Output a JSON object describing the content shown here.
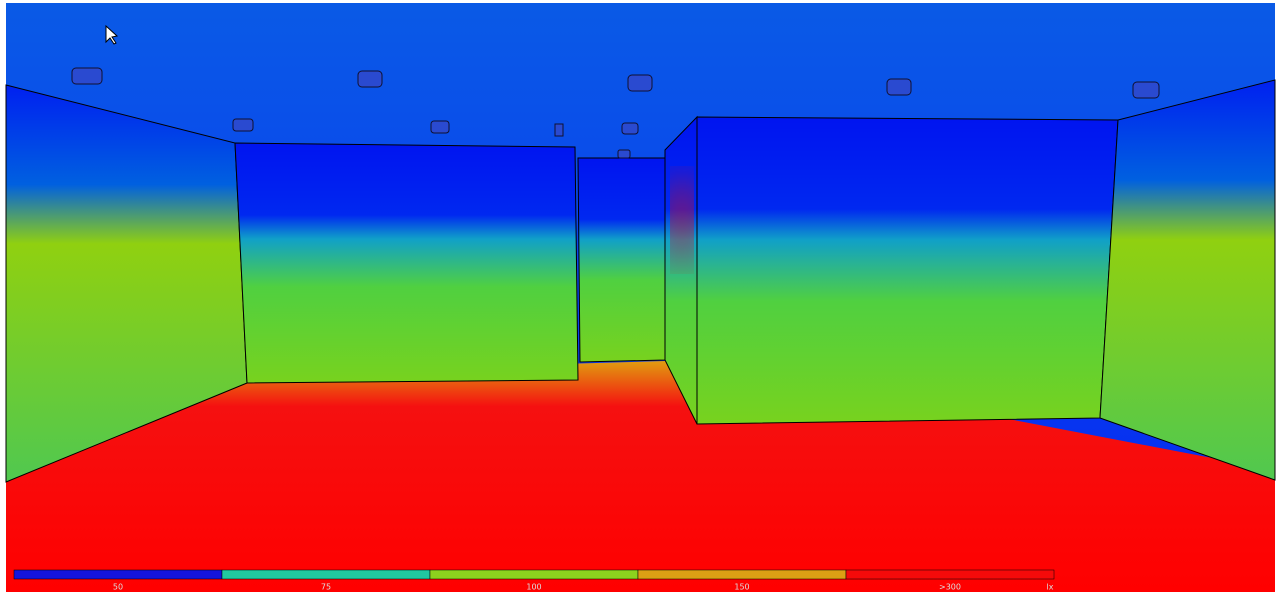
{
  "legend": {
    "items": [
      {
        "label": "50",
        "color": "#1414dc"
      },
      {
        "label": "75",
        "color": "#20c8a0"
      },
      {
        "label": "100",
        "color": "#8cd21e"
      },
      {
        "label": "150",
        "color": "#dca014"
      },
      {
        "label": ">300",
        "color": "#f50a0a"
      }
    ],
    "unit": "lx"
  }
}
